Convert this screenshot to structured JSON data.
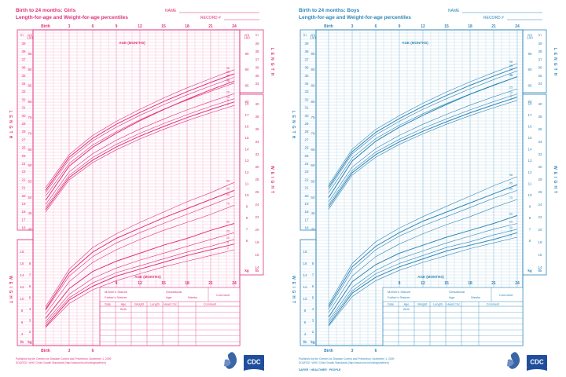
{
  "girls": {
    "color": "#e0317a",
    "title_line1": "Birth to 24 months: Girls",
    "title_line2": "Length-for-age and Weight-for-age percentiles",
    "name_label": "NAME",
    "record_label": "RECORD #",
    "top_age_label": "AGE (MONTHS)",
    "bottom_age_label": "AGE (MONTHS)",
    "side_length_left": "LENGTH",
    "side_length_right": "LENGTH",
    "side_weight_left": "WEIGHT",
    "side_weight_right": "WEIGHT",
    "unit_in": "in",
    "unit_cm": "cm",
    "unit_kg": "kg",
    "unit_lb": "lb",
    "birth_label": "Birth",
    "top_ticks": [
      "Birth",
      "3",
      "6",
      "9",
      "12",
      "15",
      "18",
      "21",
      "24"
    ],
    "bottom_ticks": [
      "Birth",
      "3",
      "6"
    ],
    "lower_ticks": [
      "9",
      "12",
      "15",
      "18",
      "21",
      "24"
    ],
    "in_ticks": [
      "39",
      "38",
      "37",
      "36",
      "35",
      "34",
      "33",
      "32",
      "31",
      "30",
      "29",
      "28",
      "27",
      "26",
      "25",
      "24",
      "23",
      "22",
      "21",
      "20",
      "19",
      "18",
      "17",
      "16"
    ],
    "cm_ticks": [
      "100",
      "95",
      "90",
      "85",
      "80",
      "75",
      "70",
      "65",
      "60",
      "55",
      "50",
      "45",
      "40"
    ],
    "cm_right_ticks": [
      "100",
      "95",
      "90",
      "85",
      "80"
    ],
    "lb_right_ticks": [
      "40",
      "38",
      "36",
      "34",
      "32",
      "30",
      "28",
      "26",
      "24",
      "22",
      "20",
      "18",
      "16",
      "14"
    ],
    "kg_right_ticks": [
      "18",
      "17",
      "16",
      "15",
      "14",
      "13",
      "12",
      "11",
      "10",
      "9",
      "8",
      "7",
      "6"
    ],
    "lb_left_ticks": [
      "18",
      "16",
      "14",
      "12",
      "10",
      "8",
      "6",
      "4"
    ],
    "kg_left_ticks": [
      "8",
      "7",
      "6",
      "5",
      "4",
      "3",
      "2"
    ],
    "percentiles": [
      "98",
      "95",
      "90",
      "75",
      "50",
      "25",
      "10",
      "5",
      "2"
    ],
    "form": {
      "mother_stature": "Mother's Stature",
      "father_stature": "Father's Stature",
      "gestational": "Gestational",
      "age": "Age:",
      "weeks": "Weeks",
      "comment": "Comment",
      "date": "Date",
      "age_col": "Age",
      "weight": "Weight",
      "length": "Length",
      "head_circ": "Head Circ.",
      "birth": "Birth"
    },
    "footer_line1": "Published by the Centers for Disease Control and Prevention, November 1, 2009",
    "footer_line2": "SOURCE: WHO Child Growth Standards (http://www.who.int/childgrowth/en)",
    "logo_text": "CDC"
  },
  "boys": {
    "color": "#2e86b8",
    "title_line1": "Birth to 24 months: Boys",
    "title_line2": "Length-for-age and Weight-for-age percentiles",
    "name_label": "NAME",
    "record_label": "RECORD #",
    "top_age_label": "AGE (MONTHS)",
    "bottom_age_label": "AGE (MONTHS)",
    "side_length_left": "LENGTH",
    "side_length_right": "LENGTH",
    "side_weight_left": "WEIGHT",
    "side_weight_right": "WEIGHT",
    "unit_in": "in",
    "unit_cm": "cm",
    "unit_kg": "kg",
    "unit_lb": "lb",
    "birth_label": "Birth",
    "top_ticks": [
      "Birth",
      "3",
      "6",
      "9",
      "12",
      "15",
      "18",
      "21",
      "24"
    ],
    "bottom_ticks": [
      "Birth",
      "3",
      "6"
    ],
    "lower_ticks": [
      "9",
      "12",
      "15",
      "18",
      "21",
      "24"
    ],
    "in_ticks": [
      "39",
      "38",
      "37",
      "36",
      "35",
      "34",
      "33",
      "32",
      "31",
      "30",
      "29",
      "28",
      "27",
      "26",
      "25",
      "24",
      "23",
      "22",
      "21",
      "20",
      "19",
      "18",
      "17",
      "16"
    ],
    "cm_ticks": [
      "100",
      "95",
      "90",
      "85",
      "80",
      "75",
      "70",
      "65",
      "60",
      "55",
      "50",
      "45",
      "40"
    ],
    "cm_right_ticks": [
      "100",
      "95",
      "90",
      "85",
      "80"
    ],
    "lb_right_ticks": [
      "40",
      "38",
      "36",
      "34",
      "32",
      "30",
      "28",
      "26",
      "24",
      "22",
      "20",
      "18",
      "16",
      "14"
    ],
    "kg_right_ticks": [
      "18",
      "17",
      "16",
      "15",
      "14",
      "13",
      "12",
      "11",
      "10",
      "9",
      "8",
      "7",
      "6"
    ],
    "lb_left_ticks": [
      "18",
      "16",
      "14",
      "12",
      "10",
      "8",
      "6",
      "4"
    ],
    "kg_left_ticks": [
      "8",
      "7",
      "6",
      "5",
      "4",
      "3",
      "2"
    ],
    "percentiles": [
      "98",
      "95",
      "90",
      "75",
      "50",
      "25",
      "10",
      "5",
      "2"
    ],
    "form": {
      "mother_stature": "Mother's Stature",
      "father_stature": "Father's Stature",
      "gestational": "Gestational",
      "age": "Age:",
      "weeks": "Weeks",
      "comment": "Comment",
      "date": "Date",
      "age_col": "Age",
      "weight": "Weight",
      "length": "Length",
      "head_circ": "Head Circ.",
      "birth": "Birth"
    },
    "footer_line1": "Published by the Centers for Disease Control and Prevention, November 1, 2009",
    "footer_line2": "SOURCE: WHO Child Growth Standards (http://www.who.int/childgrowth/en)",
    "footer_line3": "SAFER · HEALTHIER · PEOPLE",
    "logo_text": "CDC"
  },
  "chart_data": [
    {
      "type": "line",
      "title": "Birth to 24 months: Girls — Length-for-age",
      "xlabel": "AGE (MONTHS)",
      "ylabel": "LENGTH (cm)",
      "xlim": [
        0,
        24
      ],
      "ylim": [
        45,
        100
      ],
      "x": [
        0,
        3,
        6,
        9,
        12,
        15,
        18,
        21,
        24
      ],
      "series": [
        {
          "name": "98",
          "values": [
            53.0,
            63.4,
            69.4,
            73.8,
            77.6,
            81.1,
            84.3,
            87.2,
            90.0
          ]
        },
        {
          "name": "95",
          "values": [
            52.2,
            62.6,
            68.5,
            72.9,
            76.6,
            80.0,
            83.1,
            86.0,
            88.7
          ]
        },
        {
          "name": "90",
          "values": [
            51.5,
            61.8,
            67.7,
            72.0,
            75.7,
            79.0,
            82.1,
            84.9,
            87.6
          ]
        },
        {
          "name": "75",
          "values": [
            50.4,
            60.6,
            66.4,
            70.6,
            74.3,
            77.6,
            80.5,
            83.2,
            85.8
          ]
        },
        {
          "name": "50",
          "values": [
            49.1,
            59.8,
            65.7,
            70.1,
            74.0,
            77.5,
            80.7,
            83.7,
            86.4
          ]
        },
        {
          "name": "25",
          "values": [
            47.8,
            58.0,
            63.7,
            67.9,
            71.4,
            74.5,
            77.4,
            80.0,
            82.5
          ]
        },
        {
          "name": "10",
          "values": [
            46.8,
            56.9,
            62.5,
            66.6,
            70.1,
            73.1,
            75.9,
            78.5,
            80.9
          ]
        },
        {
          "name": "5",
          "values": [
            46.1,
            56.2,
            61.7,
            65.8,
            69.2,
            72.2,
            75.0,
            77.5,
            79.9
          ]
        },
        {
          "name": "2",
          "values": [
            45.4,
            55.5,
            60.9,
            64.9,
            68.3,
            71.3,
            74.0,
            76.5,
            78.8
          ]
        }
      ]
    },
    {
      "type": "line",
      "title": "Birth to 24 months: Girls — Weight-for-age",
      "xlabel": "AGE (MONTHS)",
      "ylabel": "WEIGHT (kg)",
      "xlim": [
        0,
        24
      ],
      "ylim": [
        2,
        18
      ],
      "x": [
        0,
        3,
        6,
        9,
        12,
        15,
        18,
        21,
        24
      ],
      "series": [
        {
          "name": "98",
          "values": [
            4.2,
            7.5,
            9.4,
            10.6,
            11.6,
            12.5,
            13.4,
            14.2,
            15.1
          ]
        },
        {
          "name": "95",
          "values": [
            4.0,
            7.2,
            9.0,
            10.2,
            11.1,
            12.0,
            12.8,
            13.6,
            14.4
          ]
        },
        {
          "name": "90",
          "values": [
            3.9,
            6.9,
            8.6,
            9.8,
            10.7,
            11.5,
            12.3,
            13.1,
            13.9
          ]
        },
        {
          "name": "75",
          "values": [
            3.6,
            6.4,
            8.1,
            9.2,
            10.1,
            10.9,
            11.6,
            12.3,
            13.1
          ]
        },
        {
          "name": "50",
          "values": [
            3.2,
            5.8,
            7.3,
            8.2,
            8.9,
            9.6,
            10.2,
            10.9,
            11.5
          ]
        },
        {
          "name": "25",
          "values": [
            2.9,
            5.3,
            6.7,
            7.6,
            8.3,
            8.9,
            9.5,
            10.1,
            10.7
          ]
        },
        {
          "name": "10",
          "values": [
            2.7,
            5.0,
            6.3,
            7.2,
            7.8,
            8.4,
            9.0,
            9.5,
            10.1
          ]
        },
        {
          "name": "5",
          "values": [
            2.5,
            4.8,
            6.0,
            6.9,
            7.5,
            8.1,
            8.7,
            9.2,
            9.7
          ]
        },
        {
          "name": "2",
          "values": [
            2.4,
            4.5,
            5.7,
            6.5,
            7.1,
            7.7,
            8.2,
            8.7,
            9.2
          ]
        }
      ]
    },
    {
      "type": "line",
      "title": "Birth to 24 months: Boys — Length-for-age",
      "xlabel": "AGE (MONTHS)",
      "ylabel": "LENGTH (cm)",
      "xlim": [
        0,
        24
      ],
      "ylim": [
        45,
        100
      ],
      "x": [
        0,
        3,
        6,
        9,
        12,
        15,
        18,
        21,
        24
      ],
      "series": [
        {
          "name": "98",
          "values": [
            53.9,
            65.1,
            71.3,
            75.6,
            79.5,
            83.0,
            86.2,
            89.1,
            91.9
          ]
        },
        {
          "name": "95",
          "values": [
            53.2,
            64.3,
            70.4,
            74.7,
            78.5,
            81.9,
            85.1,
            88.0,
            90.7
          ]
        },
        {
          "name": "90",
          "values": [
            52.5,
            63.6,
            69.6,
            73.8,
            77.6,
            80.9,
            84.0,
            86.9,
            89.6
          ]
        },
        {
          "name": "75",
          "values": [
            51.4,
            62.4,
            68.4,
            72.6,
            76.2,
            79.4,
            82.4,
            85.2,
            87.8
          ]
        },
        {
          "name": "50",
          "values": [
            49.9,
            61.4,
            67.6,
            72.0,
            75.7,
            79.1,
            82.3,
            85.1,
            87.8
          ]
        },
        {
          "name": "25",
          "values": [
            48.6,
            59.5,
            65.3,
            69.4,
            72.9,
            76.0,
            78.9,
            81.5,
            84.0
          ]
        },
        {
          "name": "10",
          "values": [
            47.7,
            58.4,
            64.2,
            68.2,
            71.6,
            74.6,
            77.4,
            80.0,
            82.4
          ]
        },
        {
          "name": "5",
          "values": [
            47.0,
            57.7,
            63.4,
            67.4,
            70.7,
            73.7,
            76.5,
            79.0,
            81.4
          ]
        },
        {
          "name": "2",
          "values": [
            46.3,
            57.0,
            62.6,
            66.6,
            69.9,
            72.9,
            75.6,
            78.1,
            80.4
          ]
        }
      ]
    },
    {
      "type": "line",
      "title": "Birth to 24 months: Boys — Weight-for-age",
      "xlabel": "AGE (MONTHS)",
      "ylabel": "WEIGHT (kg)",
      "xlim": [
        0,
        24
      ],
      "ylim": [
        2,
        18
      ],
      "x": [
        0,
        3,
        6,
        9,
        12,
        15,
        18,
        21,
        24
      ],
      "series": [
        {
          "name": "98",
          "values": [
            4.4,
            8.0,
            9.9,
            11.1,
            12.1,
            13.0,
            13.9,
            14.8,
            15.6
          ]
        },
        {
          "name": "95",
          "values": [
            4.2,
            7.7,
            9.5,
            10.7,
            11.7,
            12.5,
            13.3,
            14.1,
            14.9
          ]
        },
        {
          "name": "90",
          "values": [
            4.0,
            7.4,
            9.2,
            10.4,
            11.3,
            12.1,
            12.9,
            13.7,
            14.4
          ]
        },
        {
          "name": "75",
          "values": [
            3.7,
            6.9,
            8.6,
            9.7,
            10.6,
            11.4,
            12.1,
            12.9,
            13.6
          ]
        },
        {
          "name": "50",
          "values": [
            3.3,
            6.4,
            7.9,
            8.9,
            9.6,
            10.3,
            10.9,
            11.5,
            12.2
          ]
        },
        {
          "name": "25",
          "values": [
            3.0,
            5.9,
            7.4,
            8.4,
            9.1,
            9.8,
            10.4,
            11.0,
            11.5
          ]
        },
        {
          "name": "10",
          "values": [
            2.8,
            5.6,
            7.1,
            8.0,
            8.7,
            9.4,
            9.9,
            10.5,
            11.0
          ]
        },
        {
          "name": "5",
          "values": [
            2.6,
            5.4,
            6.8,
            7.7,
            8.4,
            9.1,
            9.6,
            10.1,
            10.7
          ]
        },
        {
          "name": "2",
          "values": [
            2.5,
            5.1,
            6.5,
            7.4,
            8.1,
            8.7,
            9.3,
            9.8,
            10.3
          ]
        }
      ]
    }
  ]
}
